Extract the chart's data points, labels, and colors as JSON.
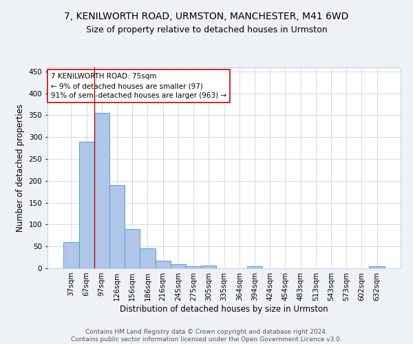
{
  "title": "7, KENILWORTH ROAD, URMSTON, MANCHESTER, M41 6WD",
  "subtitle": "Size of property relative to detached houses in Urmston",
  "xlabel": "Distribution of detached houses by size in Urmston",
  "ylabel": "Number of detached properties",
  "categories": [
    "37sqm",
    "67sqm",
    "97sqm",
    "126sqm",
    "156sqm",
    "186sqm",
    "216sqm",
    "245sqm",
    "275sqm",
    "305sqm",
    "335sqm",
    "364sqm",
    "394sqm",
    "424sqm",
    "454sqm",
    "483sqm",
    "513sqm",
    "543sqm",
    "573sqm",
    "602sqm",
    "632sqm"
  ],
  "values": [
    59,
    290,
    355,
    191,
    90,
    46,
    18,
    9,
    5,
    6,
    0,
    0,
    4,
    0,
    0,
    0,
    0,
    0,
    0,
    0,
    4
  ],
  "bar_color": "#aec6e8",
  "bar_edge_color": "#5b9bd5",
  "bg_color": "#eef2f7",
  "plot_bg_color": "#ffffff",
  "grid_color": "#c8d4e0",
  "vline_x_index": 1.5,
  "vline_color": "#cc0000",
  "annotation_text": "7 KENILWORTH ROAD: 75sqm\n← 9% of detached houses are smaller (97)\n91% of semi-detached houses are larger (963) →",
  "annotation_box_color": "#ffffff",
  "annotation_box_edge_color": "#cc0000",
  "ylim": [
    0,
    460
  ],
  "yticks": [
    0,
    50,
    100,
    150,
    200,
    250,
    300,
    350,
    400,
    450
  ],
  "footer_text": "Contains HM Land Registry data © Crown copyright and database right 2024.\nContains public sector information licensed under the Open Government Licence v3.0.",
  "title_fontsize": 10,
  "subtitle_fontsize": 9,
  "axis_label_fontsize": 8.5,
  "tick_fontsize": 7.5,
  "annotation_fontsize": 7.5,
  "footer_fontsize": 6.5
}
